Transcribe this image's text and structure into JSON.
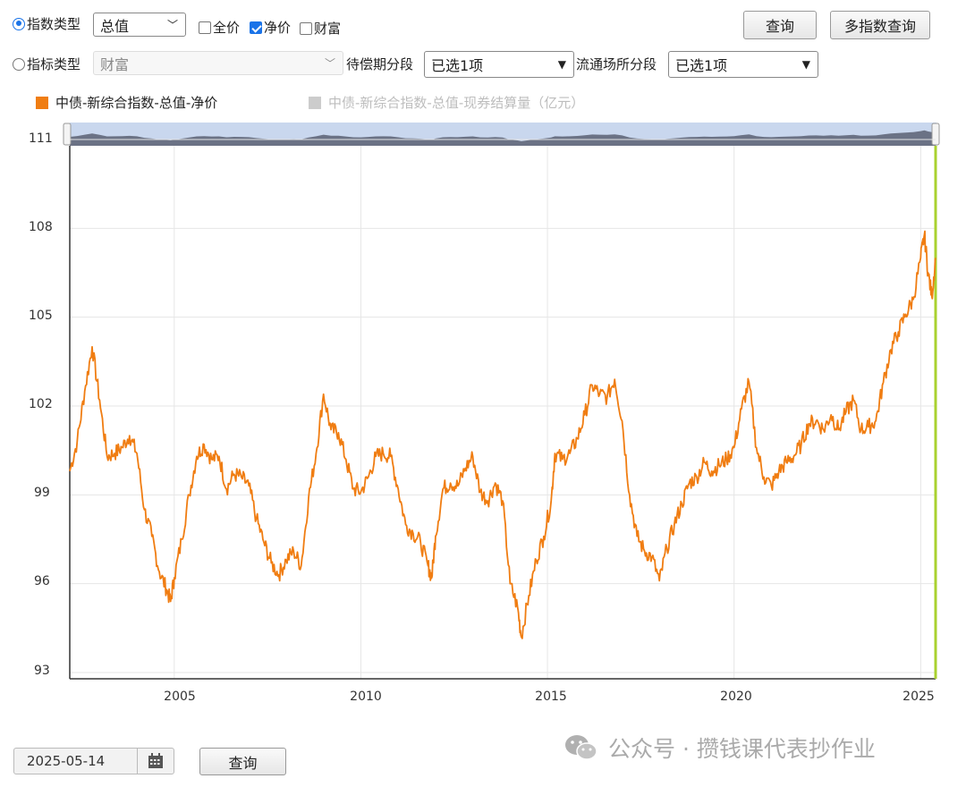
{
  "controls": {
    "row1": {
      "radio_label": "指数类型",
      "select_value": "总值",
      "checks": [
        {
          "label": "全价",
          "checked": false
        },
        {
          "label": "净价",
          "checked": true
        },
        {
          "label": "财富",
          "checked": false
        }
      ]
    },
    "row2": {
      "radio_label": "指标类型",
      "select_value": "财富",
      "maturity_label": "待偿期分段",
      "maturity_value": "已选1项",
      "market_label": "流通场所分段",
      "market_value": "已选1项"
    },
    "query_button": "查询",
    "multi_query_button": "多指数查询",
    "date_value": "2025-05-14",
    "bottom_query_button": "查询"
  },
  "watermark": {
    "text": "公众号 · 攒钱课代表抄作业",
    "icon": "wechat-icon"
  },
  "colors": {
    "series": "#f07d12",
    "inactive": "#cccccc",
    "navigator_fill": "#6b7285",
    "navigator_bg": "#c9d7ee",
    "marker": "#a9d12f"
  },
  "chart_data": {
    "type": "line",
    "legend": [
      {
        "name": "中债-新综合指数-总值-净价",
        "active": true
      },
      {
        "name": "中债-新综合指数-总值-现券结算量（亿元）",
        "active": false
      }
    ],
    "y_ticks": [
      "93",
      "96",
      "99",
      "102",
      "105",
      "108",
      "111"
    ],
    "ylim": [
      93,
      111
    ],
    "x_ticks": [
      "2005",
      "2010",
      "2015",
      "2020",
      "2025"
    ],
    "xlim": [
      2002.2,
      2025.4
    ],
    "legend_position": "top-left",
    "grid": true,
    "series": [
      {
        "name": "中债-新综合指数-总值-净价",
        "points": [
          [
            2002.2,
            99.8
          ],
          [
            2002.4,
            100.8
          ],
          [
            2002.6,
            102.5
          ],
          [
            2002.8,
            104.0
          ],
          [
            2003.0,
            102.2
          ],
          [
            2003.2,
            100.3
          ],
          [
            2003.4,
            100.4
          ],
          [
            2003.6,
            100.6
          ],
          [
            2003.8,
            101.0
          ],
          [
            2004.0,
            100.4
          ],
          [
            2004.2,
            98.5
          ],
          [
            2004.4,
            97.6
          ],
          [
            2004.6,
            96.4
          ],
          [
            2004.8,
            95.8
          ],
          [
            2004.9,
            95.4
          ],
          [
            2005.0,
            96.2
          ],
          [
            2005.2,
            97.5
          ],
          [
            2005.4,
            99.0
          ],
          [
            2005.6,
            100.3
          ],
          [
            2005.8,
            100.7
          ],
          [
            2006.0,
            100.2
          ],
          [
            2006.2,
            100.3
          ],
          [
            2006.4,
            99.2
          ],
          [
            2006.6,
            99.7
          ],
          [
            2006.8,
            99.6
          ],
          [
            2007.0,
            99.3
          ],
          [
            2007.2,
            98.2
          ],
          [
            2007.4,
            97.4
          ],
          [
            2007.6,
            96.7
          ],
          [
            2007.8,
            96.3
          ],
          [
            2008.0,
            96.8
          ],
          [
            2008.2,
            97.1
          ],
          [
            2008.4,
            96.6
          ],
          [
            2008.6,
            98.9
          ],
          [
            2008.8,
            100.4
          ],
          [
            2009.0,
            102.4
          ],
          [
            2009.2,
            101.2
          ],
          [
            2009.4,
            101.1
          ],
          [
            2009.6,
            100.2
          ],
          [
            2009.8,
            99.2
          ],
          [
            2010.0,
            99.1
          ],
          [
            2010.2,
            99.6
          ],
          [
            2010.4,
            100.3
          ],
          [
            2010.6,
            100.4
          ],
          [
            2010.8,
            100.3
          ],
          [
            2011.0,
            99.2
          ],
          [
            2011.2,
            98.0
          ],
          [
            2011.4,
            97.7
          ],
          [
            2011.6,
            97.4
          ],
          [
            2011.8,
            96.6
          ],
          [
            2011.9,
            96.2
          ],
          [
            2012.0,
            97.6
          ],
          [
            2012.2,
            99.2
          ],
          [
            2012.4,
            99.4
          ],
          [
            2012.6,
            99.3
          ],
          [
            2012.8,
            99.9
          ],
          [
            2013.0,
            100.3
          ],
          [
            2013.2,
            99.1
          ],
          [
            2013.4,
            98.8
          ],
          [
            2013.6,
            99.4
          ],
          [
            2013.8,
            98.8
          ],
          [
            2014.0,
            96.0
          ],
          [
            2014.2,
            95.2
          ],
          [
            2014.3,
            94.2
          ],
          [
            2014.5,
            95.6
          ],
          [
            2014.7,
            96.8
          ],
          [
            2014.9,
            97.6
          ],
          [
            2015.1,
            98.8
          ],
          [
            2015.2,
            100.4
          ],
          [
            2015.4,
            100.2
          ],
          [
            2015.6,
            100.4
          ],
          [
            2015.8,
            100.9
          ],
          [
            2016.0,
            101.7
          ],
          [
            2016.2,
            102.7
          ],
          [
            2016.4,
            102.4
          ],
          [
            2016.6,
            102.3
          ],
          [
            2016.8,
            102.9
          ],
          [
            2017.0,
            101.5
          ],
          [
            2017.2,
            99.0
          ],
          [
            2017.4,
            97.6
          ],
          [
            2017.6,
            97.1
          ],
          [
            2017.8,
            96.9
          ],
          [
            2018.0,
            96.1
          ],
          [
            2018.2,
            97.2
          ],
          [
            2018.4,
            98.0
          ],
          [
            2018.6,
            98.7
          ],
          [
            2018.8,
            99.4
          ],
          [
            2019.0,
            99.6
          ],
          [
            2019.2,
            100.1
          ],
          [
            2019.4,
            99.8
          ],
          [
            2019.6,
            100.0
          ],
          [
            2019.8,
            100.2
          ],
          [
            2020.0,
            100.6
          ],
          [
            2020.2,
            101.9
          ],
          [
            2020.4,
            102.8
          ],
          [
            2020.6,
            100.6
          ],
          [
            2020.8,
            99.6
          ],
          [
            2021.0,
            99.3
          ],
          [
            2021.2,
            99.8
          ],
          [
            2021.4,
            100.1
          ],
          [
            2021.6,
            100.3
          ],
          [
            2021.8,
            100.7
          ],
          [
            2022.0,
            101.4
          ],
          [
            2022.2,
            101.5
          ],
          [
            2022.4,
            101.2
          ],
          [
            2022.6,
            101.7
          ],
          [
            2022.8,
            101.2
          ],
          [
            2023.0,
            101.8
          ],
          [
            2023.2,
            102.2
          ],
          [
            2023.4,
            101.2
          ],
          [
            2023.6,
            101.3
          ],
          [
            2023.8,
            101.5
          ],
          [
            2024.0,
            102.8
          ],
          [
            2024.2,
            103.9
          ],
          [
            2024.4,
            104.5
          ],
          [
            2024.6,
            105.1
          ],
          [
            2024.8,
            105.6
          ],
          [
            2025.0,
            107.0
          ],
          [
            2025.1,
            107.8
          ],
          [
            2025.2,
            106.5
          ],
          [
            2025.3,
            105.7
          ],
          [
            2025.4,
            107.0
          ]
        ]
      }
    ]
  }
}
